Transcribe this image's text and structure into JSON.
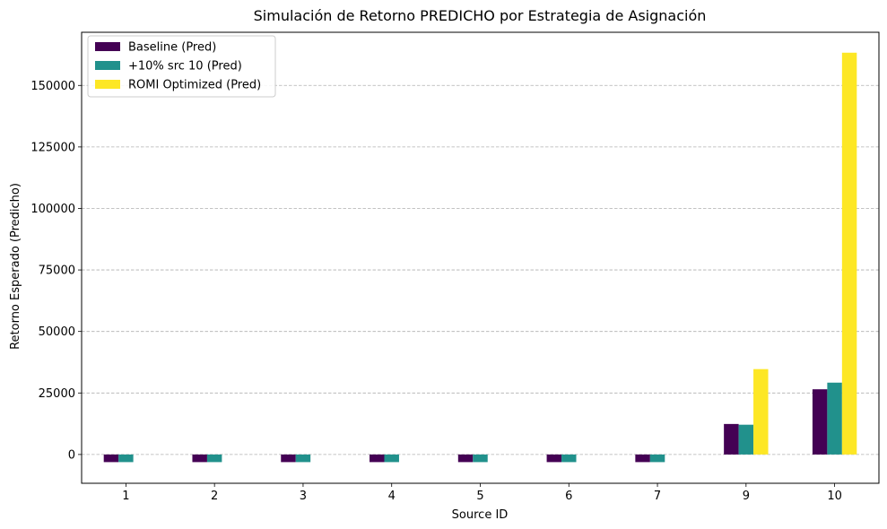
{
  "chart_data": {
    "type": "bar",
    "title": "Simulación de Retorno PREDICHO por Estrategia de Asignación",
    "xlabel": "Source ID",
    "ylabel": "Retorno Esperado (Predicho)",
    "categories": [
      "1",
      "2",
      "3",
      "4",
      "5",
      "6",
      "7",
      "9",
      "10"
    ],
    "ylim": [
      -11700,
      171600
    ],
    "yticks": [
      0,
      25000,
      50000,
      75000,
      100000,
      125000,
      150000
    ],
    "grid": "y-dashed",
    "legend_position": "top-left",
    "series": [
      {
        "name": "Baseline (Pred)",
        "color": "#440154",
        "values": [
          -3100,
          -3100,
          -3100,
          -3100,
          -3100,
          -3100,
          -3100,
          12400,
          26500
        ]
      },
      {
        "name": "+10% src 10 (Pred)",
        "color": "#21918c",
        "values": [
          -3100,
          -3100,
          -3100,
          -3100,
          -3100,
          -3100,
          -3100,
          12100,
          29200
        ]
      },
      {
        "name": "ROMI Optimized (Pred)",
        "color": "#fde725",
        "values": [
          0,
          0,
          0,
          0,
          0,
          0,
          0,
          34700,
          163300
        ]
      }
    ]
  }
}
